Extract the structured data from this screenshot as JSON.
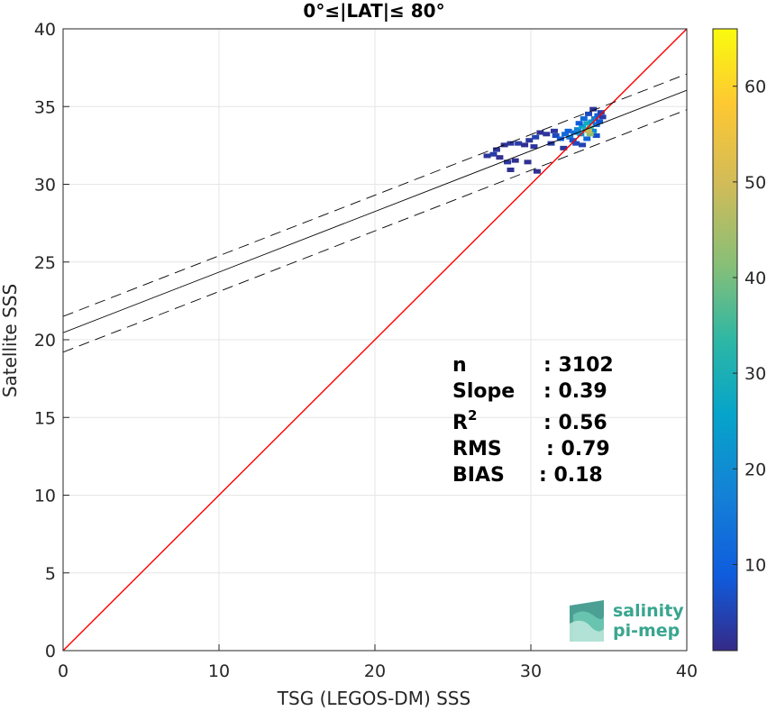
{
  "chart_data": {
    "type": "heatmap",
    "title": "0°≤|LAT|≤ 80°",
    "xlabel": "TSG (LEGOS-DM) SSS",
    "ylabel": "Satellite SSS",
    "xlim": [
      0,
      40
    ],
    "ylim": [
      0,
      40
    ],
    "xticks": [
      "0",
      "10",
      "20",
      "30",
      "40"
    ],
    "yticks": [
      "0",
      "5",
      "10",
      "15",
      "20",
      "25",
      "30",
      "35",
      "40"
    ],
    "grid": true,
    "colorbar": {
      "range": [
        1,
        66
      ],
      "ticks": [
        "10",
        "20",
        "30",
        "40",
        "50",
        "60"
      ],
      "tick_values": [
        10,
        20,
        30,
        40,
        50,
        60
      ],
      "colormap": "parula"
    },
    "lines": {
      "identity": {
        "slope": 1,
        "intercept": 0,
        "color": "#ff0000"
      },
      "fit": {
        "slope": 0.39,
        "intercept": 20.45,
        "color": "#000000"
      },
      "upper_bound": {
        "slope": 0.39,
        "intercept": 21.5,
        "style": "dashed"
      },
      "lower_bound": {
        "slope": 0.39,
        "intercept": 19.2,
        "style": "dashed"
      }
    },
    "density_cells": [
      [
        27.2,
        31.8,
        3
      ],
      [
        27.6,
        31.9,
        4
      ],
      [
        28.0,
        31.7,
        2
      ],
      [
        27.8,
        32.2,
        3
      ],
      [
        28.3,
        32.5,
        2
      ],
      [
        28.7,
        32.6,
        3
      ],
      [
        29.2,
        32.6,
        4
      ],
      [
        29.6,
        32.5,
        2
      ],
      [
        29.9,
        32.8,
        3
      ],
      [
        30.3,
        33.0,
        5
      ],
      [
        30.6,
        33.3,
        2
      ],
      [
        30.2,
        32.4,
        3
      ],
      [
        29.0,
        31.5,
        2
      ],
      [
        28.5,
        31.4,
        3
      ],
      [
        29.8,
        31.4,
        2
      ],
      [
        30.4,
        30.8,
        2
      ],
      [
        28.7,
        30.9,
        2
      ],
      [
        31.6,
        33.1,
        6
      ],
      [
        31.9,
        32.9,
        9
      ],
      [
        32.2,
        33.2,
        12
      ],
      [
        32.5,
        33.0,
        15
      ],
      [
        32.4,
        33.4,
        10
      ],
      [
        32.8,
        33.3,
        14
      ],
      [
        32.7,
        32.8,
        8
      ],
      [
        33.0,
        33.5,
        18
      ],
      [
        33.2,
        33.2,
        22
      ],
      [
        33.3,
        33.7,
        25
      ],
      [
        33.5,
        33.5,
        30
      ],
      [
        33.6,
        33.9,
        28
      ],
      [
        33.8,
        33.6,
        36
      ],
      [
        33.9,
        34.0,
        24
      ],
      [
        34.0,
        33.4,
        20
      ],
      [
        34.1,
        34.2,
        16
      ],
      [
        34.2,
        33.8,
        14
      ],
      [
        34.3,
        34.4,
        10
      ],
      [
        34.4,
        34.0,
        8
      ],
      [
        33.4,
        34.2,
        12
      ],
      [
        33.1,
        33.9,
        9
      ],
      [
        32.9,
        32.6,
        6
      ],
      [
        33.6,
        32.9,
        11
      ],
      [
        34.5,
        34.6,
        5
      ],
      [
        34.6,
        34.3,
        4
      ],
      [
        33.7,
        34.5,
        6
      ],
      [
        31.3,
        32.6,
        4
      ],
      [
        31.0,
        33.2,
        3
      ],
      [
        34.2,
        33.1,
        7
      ],
      [
        33.3,
        32.5,
        5
      ],
      [
        32.1,
        32.3,
        3
      ],
      [
        31.5,
        33.4,
        3
      ],
      [
        34.0,
        34.8,
        3
      ],
      [
        33.8,
        33.2,
        42
      ],
      [
        33.7,
        33.4,
        48
      ]
    ]
  },
  "stats": [
    {
      "label": "n",
      "value": ": 3102"
    },
    {
      "label": "Slope",
      "value": ": 0.39"
    },
    {
      "label": "R2",
      "value": ": 0.56"
    },
    {
      "label": "RMS",
      "value": ": 0.79"
    },
    {
      "label": "BIAS",
      "value": ": 0.18"
    }
  ],
  "logo": {
    "line1": "salinity",
    "line2": "pi-mep"
  }
}
